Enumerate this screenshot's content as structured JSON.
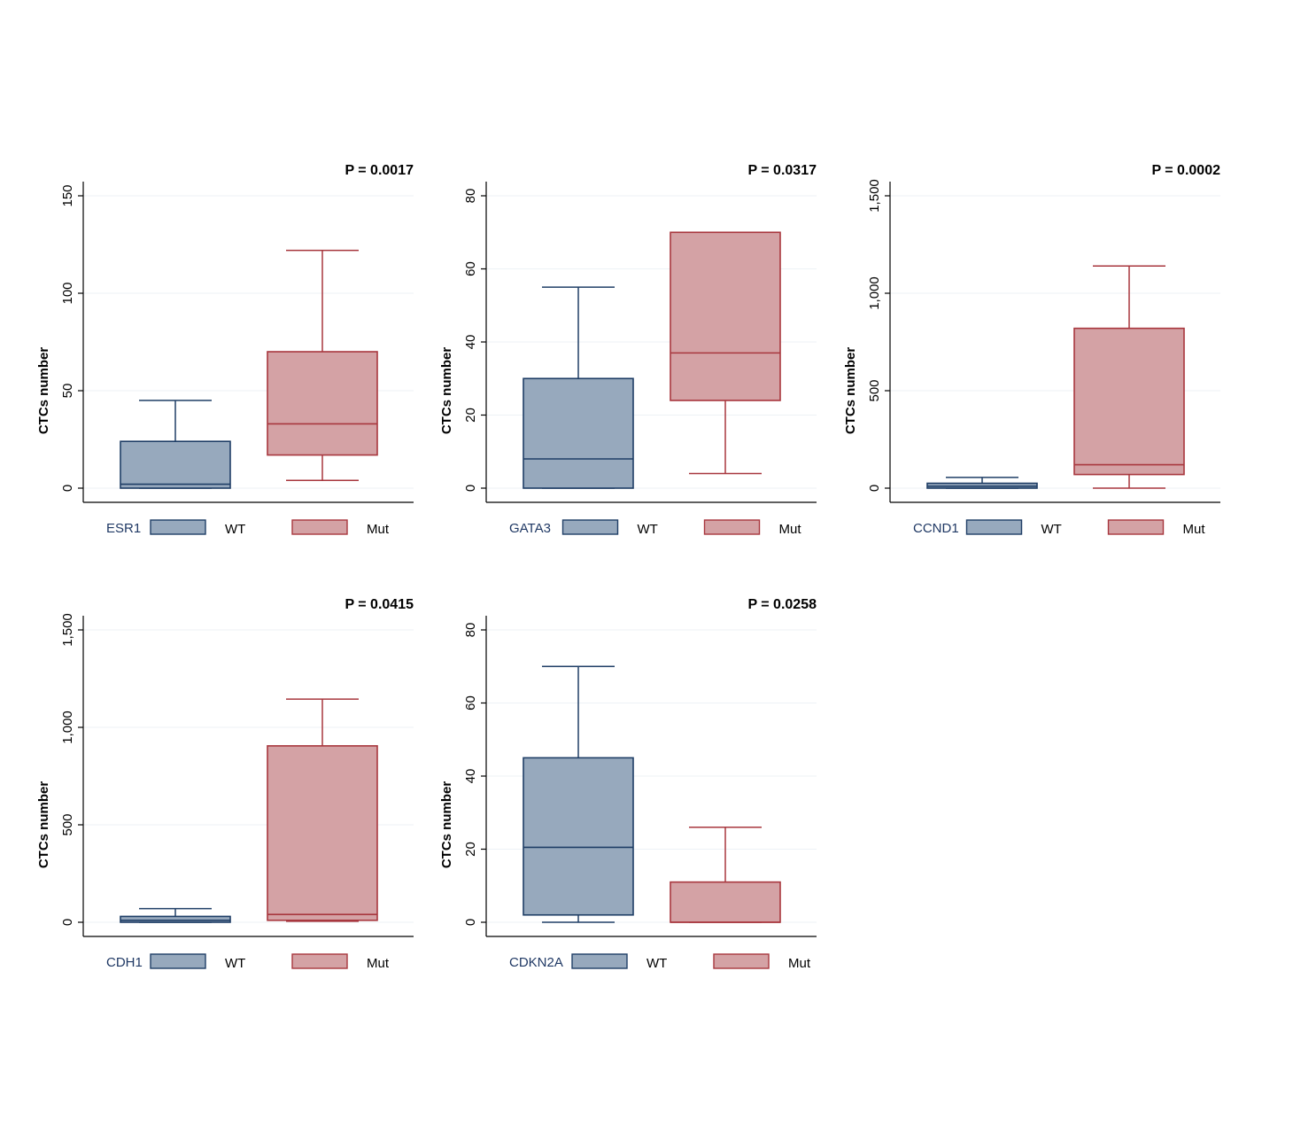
{
  "colors": {
    "wt_fill": "#97a9bd",
    "wt_line": "#1f3e66",
    "mut_fill": "#d4a2a5",
    "mut_line": "#a8373e",
    "grid": "#edf2f6"
  },
  "chart_data": [
    {
      "type": "box",
      "gene": "ESR1",
      "pvalue": "P = 0.0017",
      "ylabel": "CTCs number",
      "ylim": [
        0,
        150
      ],
      "yticks": [
        0,
        50,
        100,
        150
      ],
      "ytick_labels": [
        "0",
        "50",
        "100",
        "150"
      ],
      "grid": true,
      "legend": [
        "WT",
        "Mut"
      ],
      "series": [
        {
          "name": "WT",
          "whisker_low": 0,
          "q1": 0,
          "median": 2,
          "q3": 24,
          "whisker_high": 45
        },
        {
          "name": "Mut",
          "whisker_low": 4,
          "q1": 17,
          "median": 33,
          "q3": 70,
          "whisker_high": 122
        }
      ]
    },
    {
      "type": "box",
      "gene": "GATA3",
      "pvalue": "P = 0.0317",
      "ylabel": "CTCs number",
      "ylim": [
        0,
        80
      ],
      "yticks": [
        0,
        20,
        40,
        60,
        80
      ],
      "ytick_labels": [
        "0",
        "20",
        "40",
        "60",
        "80"
      ],
      "grid": true,
      "legend": [
        "WT",
        "Mut"
      ],
      "series": [
        {
          "name": "WT",
          "whisker_low": 0,
          "q1": 0,
          "median": 8,
          "q3": 30,
          "whisker_high": 55
        },
        {
          "name": "Mut",
          "whisker_low": 4,
          "q1": 24,
          "median": 37,
          "q3": 70,
          "whisker_high": 70
        }
      ]
    },
    {
      "type": "box",
      "gene": "CCND1",
      "pvalue": "P = 0.0002",
      "ylabel": "CTCs number",
      "ylim": [
        0,
        1500
      ],
      "yticks": [
        0,
        500,
        1000,
        1500
      ],
      "ytick_labels": [
        "0",
        "500",
        "1,000",
        "1,500"
      ],
      "grid": true,
      "legend": [
        "WT",
        "Mut"
      ],
      "series": [
        {
          "name": "WT",
          "whisker_low": 0,
          "q1": 0,
          "median": 10,
          "q3": 25,
          "whisker_high": 55
        },
        {
          "name": "Mut",
          "whisker_low": 0,
          "q1": 70,
          "median": 120,
          "q3": 820,
          "whisker_high": 1140
        }
      ]
    },
    {
      "type": "box",
      "gene": "CDH1",
      "pvalue": "P = 0.0415",
      "ylabel": "CTCs number",
      "ylim": [
        0,
        1500
      ],
      "yticks": [
        0,
        500,
        1000,
        1500
      ],
      "ytick_labels": [
        "0",
        "500",
        "1,000",
        "1,500"
      ],
      "grid": true,
      "legend": [
        "WT",
        "Mut"
      ],
      "series": [
        {
          "name": "WT",
          "whisker_low": 0,
          "q1": 0,
          "median": 10,
          "q3": 30,
          "whisker_high": 70
        },
        {
          "name": "Mut",
          "whisker_low": 5,
          "q1": 10,
          "median": 40,
          "q3": 905,
          "whisker_high": 1145
        }
      ]
    },
    {
      "type": "box",
      "gene": "CDKN2A",
      "pvalue": "P = 0.0258",
      "ylabel": "CTCs number",
      "ylim": [
        0,
        80
      ],
      "yticks": [
        0,
        20,
        40,
        60,
        80
      ],
      "ytick_labels": [
        "0",
        "20",
        "40",
        "60",
        "80"
      ],
      "grid": true,
      "legend": [
        "WT",
        "Mut"
      ],
      "series": [
        {
          "name": "WT",
          "whisker_low": 0,
          "q1": 2,
          "median": 20.5,
          "q3": 45,
          "whisker_high": 70
        },
        {
          "name": "Mut",
          "whisker_low": 0,
          "q1": 0,
          "median": 0,
          "q3": 11,
          "whisker_high": 26
        }
      ]
    }
  ]
}
